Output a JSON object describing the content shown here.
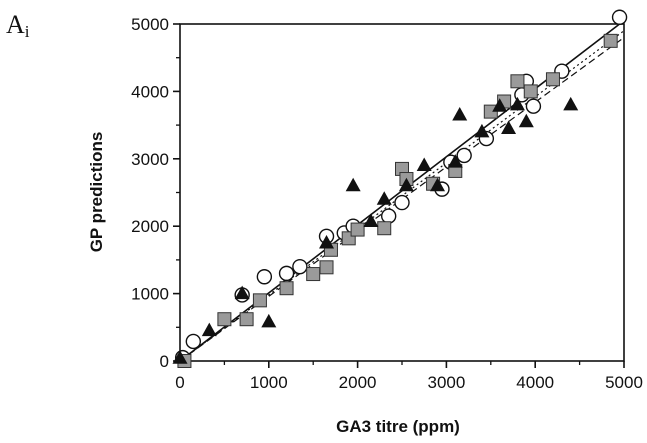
{
  "chart_data": {
    "type": "scatter",
    "panel_label": "A",
    "panel_label_sub": "i",
    "xlabel": "GA3 titre (ppm)",
    "ylabel": "GP predictions",
    "xlim": [
      0,
      5000
    ],
    "ylim": [
      0,
      5000
    ],
    "xticks": [
      "0",
      "1000",
      "2000",
      "3000",
      "4000",
      "5000"
    ],
    "yticks": [
      "0",
      "1000",
      "2000",
      "3000",
      "4000",
      "5000"
    ],
    "grid": false,
    "legend": "none",
    "series": [
      {
        "marker": "circle-open",
        "points": [
          [
            30,
            50
          ],
          [
            150,
            290
          ],
          [
            700,
            980
          ],
          [
            950,
            1250
          ],
          [
            1200,
            1300
          ],
          [
            1350,
            1400
          ],
          [
            1650,
            1850
          ],
          [
            1850,
            1900
          ],
          [
            1950,
            2000
          ],
          [
            2350,
            2150
          ],
          [
            2500,
            2350
          ],
          [
            2950,
            2550
          ],
          [
            3050,
            2950
          ],
          [
            3200,
            3050
          ],
          [
            3450,
            3300
          ],
          [
            3850,
            3950
          ],
          [
            3900,
            4150
          ],
          [
            3980,
            3780
          ],
          [
            4300,
            4300
          ],
          [
            4950,
            5100
          ]
        ]
      },
      {
        "marker": "square-gray",
        "points": [
          [
            50,
            0
          ],
          [
            500,
            620
          ],
          [
            750,
            620
          ],
          [
            900,
            900
          ],
          [
            1200,
            1080
          ],
          [
            1500,
            1290
          ],
          [
            1650,
            1390
          ],
          [
            1700,
            1650
          ],
          [
            1900,
            1820
          ],
          [
            2000,
            1950
          ],
          [
            2300,
            1970
          ],
          [
            2500,
            2850
          ],
          [
            2550,
            2700
          ],
          [
            2850,
            2630
          ],
          [
            3100,
            2820
          ],
          [
            3500,
            3700
          ],
          [
            3650,
            3850
          ],
          [
            3800,
            4150
          ],
          [
            3950,
            4000
          ],
          [
            4200,
            4180
          ],
          [
            4850,
            4750
          ]
        ]
      },
      {
        "marker": "triangle-black",
        "points": [
          [
            0,
            40
          ],
          [
            330,
            450
          ],
          [
            700,
            1000
          ],
          [
            1000,
            580
          ],
          [
            1650,
            1750
          ],
          [
            1950,
            2600
          ],
          [
            2150,
            2070
          ],
          [
            2300,
            2400
          ],
          [
            2550,
            2600
          ],
          [
            2750,
            2900
          ],
          [
            2900,
            2600
          ],
          [
            3100,
            2950
          ],
          [
            3150,
            3650
          ],
          [
            3400,
            3400
          ],
          [
            3600,
            3780
          ],
          [
            3700,
            3450
          ],
          [
            3800,
            3800
          ],
          [
            3900,
            3550
          ],
          [
            4400,
            3800
          ]
        ]
      }
    ],
    "fit_lines": [
      {
        "style": "solid",
        "from": [
          0,
          0
        ],
        "to": [
          5000,
          5050
        ]
      },
      {
        "style": "dashed",
        "from": [
          0,
          0
        ],
        "to": [
          5000,
          4800
        ]
      },
      {
        "style": "dotted",
        "from": [
          0,
          0
        ],
        "to": [
          5000,
          4900
        ]
      }
    ]
  }
}
